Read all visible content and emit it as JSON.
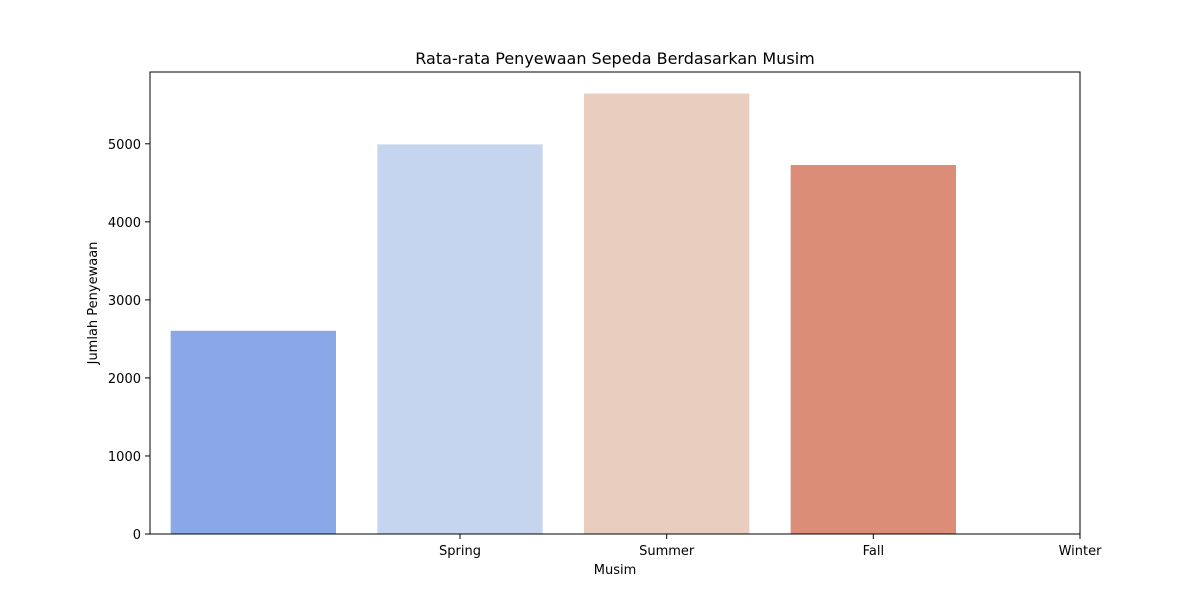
{
  "chart_data": {
    "type": "bar",
    "title": "Rata-rata Penyewaan Sepeda Berdasarkan Musim",
    "xlabel": "Musim",
    "ylabel": "Jumlah Penyewaan",
    "bar_values": [
      2604,
      4992,
      5644,
      4728
    ],
    "bar_colors": [
      "#8aa8e8",
      "#c6d5ef",
      "#e9cdbf",
      "#db8d77"
    ],
    "x_tick_labels": [
      "Spring",
      "Summer",
      "Fall",
      "Winter"
    ],
    "ylim": [
      0,
      5920
    ],
    "yticks": [
      0,
      1000,
      2000,
      3000,
      4000,
      5000
    ],
    "grid": false,
    "legend": "none"
  }
}
